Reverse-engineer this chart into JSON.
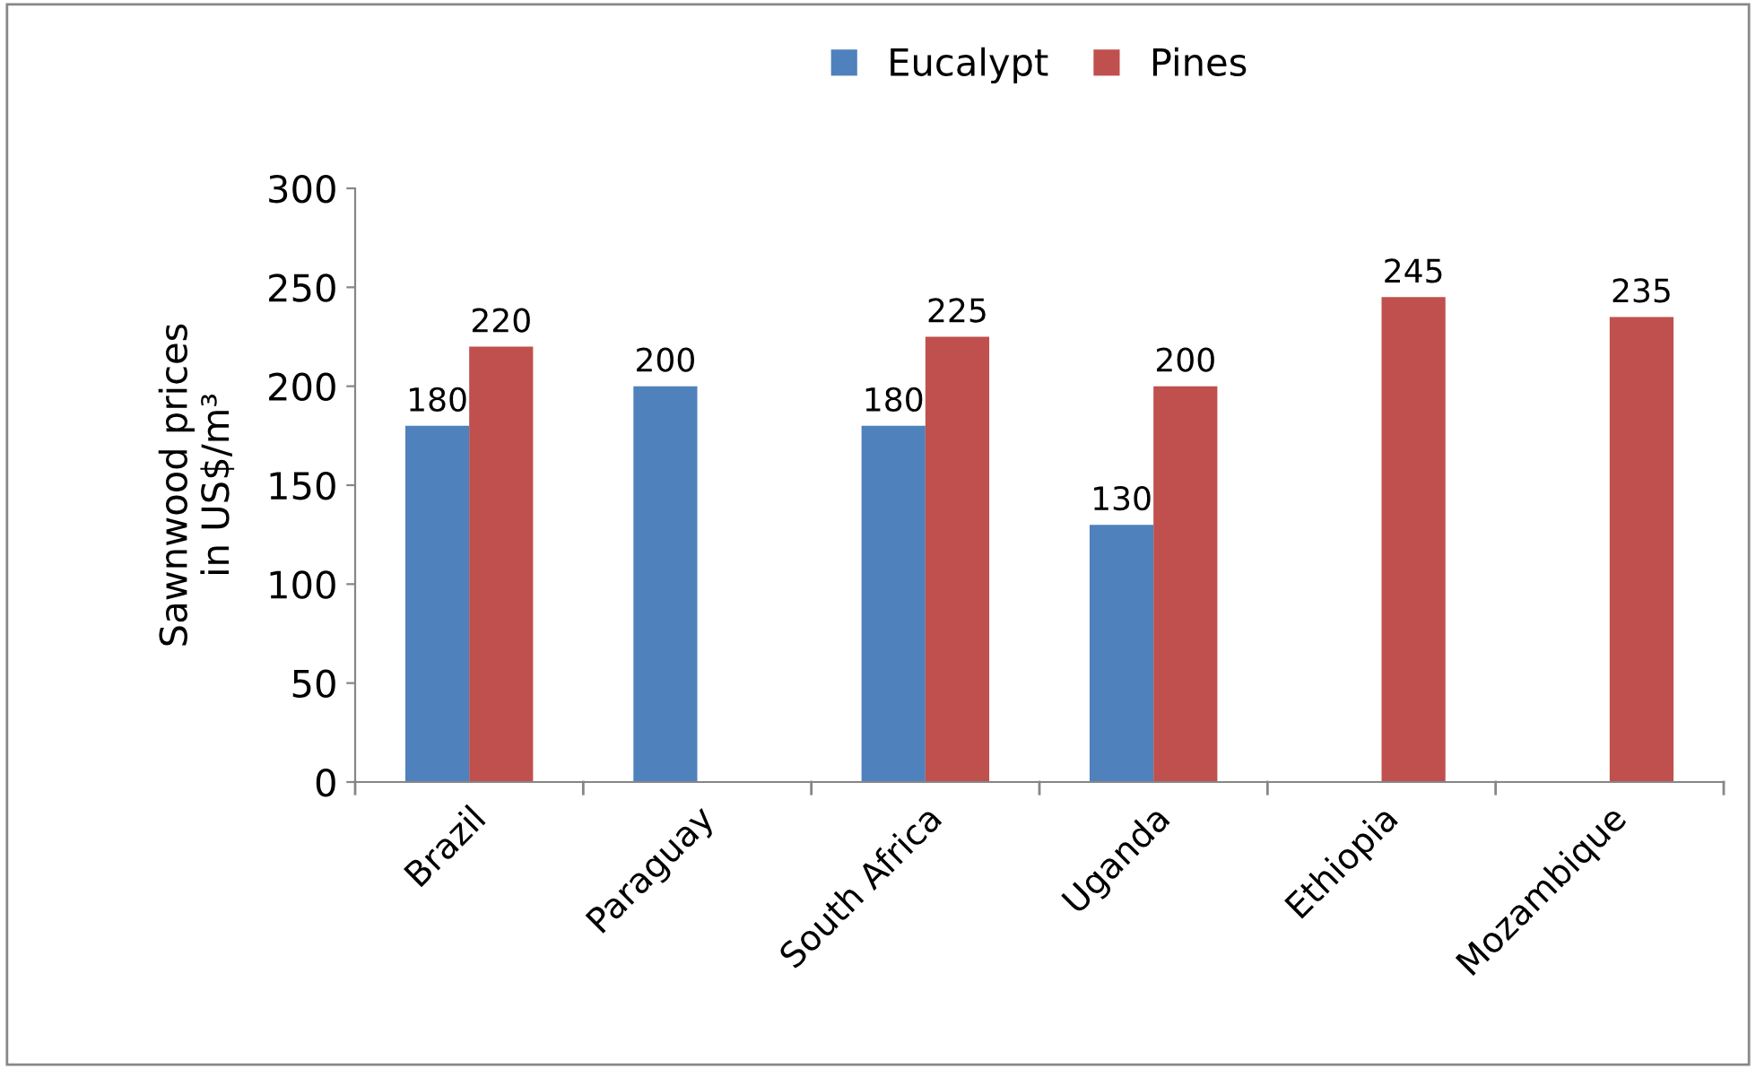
{
  "chart_data": {
    "type": "bar",
    "ylabel": "Sawnwood prices\nin US$/m³",
    "categories": [
      "Brazil",
      "Paraguay",
      "South Africa",
      "Uganda",
      "Ethiopia",
      "Mozambique"
    ],
    "series": [
      {
        "name": "Eucalypt",
        "color": "#4f81bd",
        "values": [
          180,
          200,
          180,
          130,
          null,
          null
        ]
      },
      {
        "name": "Pines",
        "color": "#c0504d",
        "values": [
          220,
          null,
          225,
          200,
          245,
          235
        ]
      }
    ],
    "ylim": [
      0,
      300
    ],
    "yticks": [
      0,
      50,
      100,
      150,
      200,
      250,
      300
    ],
    "data_labels": true,
    "legend": "top",
    "grid": false
  }
}
